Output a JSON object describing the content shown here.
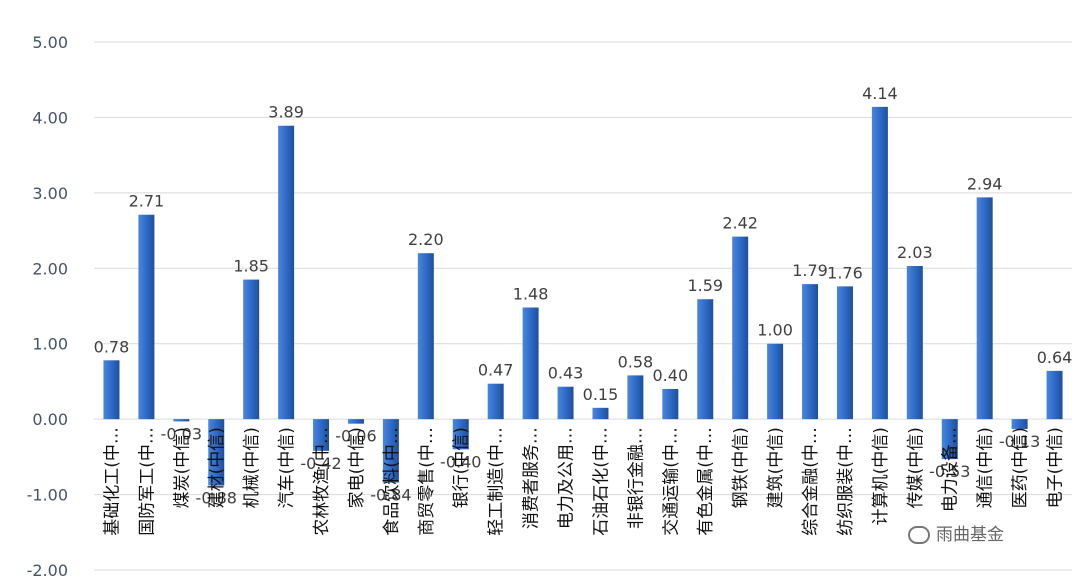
{
  "chart_data": {
    "type": "bar",
    "title": "",
    "xlabel": "",
    "ylabel": "",
    "ylim": [
      -2,
      5
    ],
    "yticks": [
      "5.00",
      "4.00",
      "3.00",
      "2.00",
      "1.00",
      "0.00",
      "-1.00",
      "-2.00"
    ],
    "grid": true,
    "legend": "none",
    "bar_color": "#2e6bc7",
    "categories": [
      "基础化工(中…",
      "国防军工(中…",
      "煤炭(中信)",
      "建材(中信)",
      "机械(中信)",
      "汽车(中信)",
      "农林牧渔(中…",
      "家电(中信)",
      "食品饮料(中…",
      "商贸零售(中…",
      "银行(中信)",
      "轻工制造(中…",
      "消费者服务…",
      "电力及公用…",
      "石油石化(中…",
      "非银行金融…",
      "交通运输(中…",
      "有色金属(中…",
      "钢铁(中信)",
      "建筑(中信)",
      "综合金融(中…",
      "纺织服装(中…",
      "计算机(中信)",
      "传媒(中信)",
      "电力设备…",
      "通信(中信)",
      "医药(中信)",
      "电子(中信)"
    ],
    "values": [
      0.78,
      2.71,
      -0.03,
      -0.88,
      1.85,
      3.89,
      -0.42,
      -0.06,
      -0.84,
      2.2,
      -0.4,
      0.47,
      1.48,
      0.43,
      0.15,
      0.58,
      0.4,
      1.59,
      2.42,
      1.0,
      1.79,
      1.76,
      4.14,
      2.03,
      -0.53,
      2.94,
      -0.13,
      0.64
    ],
    "value_labels": [
      "0.78",
      "2.71",
      "-0.03",
      "-0.88",
      "1.85",
      "3.89",
      "-0.42",
      "-0.06",
      "-0.84",
      "2.20",
      "-0.40",
      "0.47",
      "1.48",
      "0.43",
      "0.15",
      "0.58",
      "0.40",
      "1.59",
      "2.42",
      "1.00",
      "1.79",
      "1.76",
      "4.14",
      "2.03",
      "-0.53",
      "2.94",
      "-0.13",
      "0.64"
    ]
  },
  "watermark": {
    "text": "雨曲基金",
    "icon": "wechat-icon"
  }
}
